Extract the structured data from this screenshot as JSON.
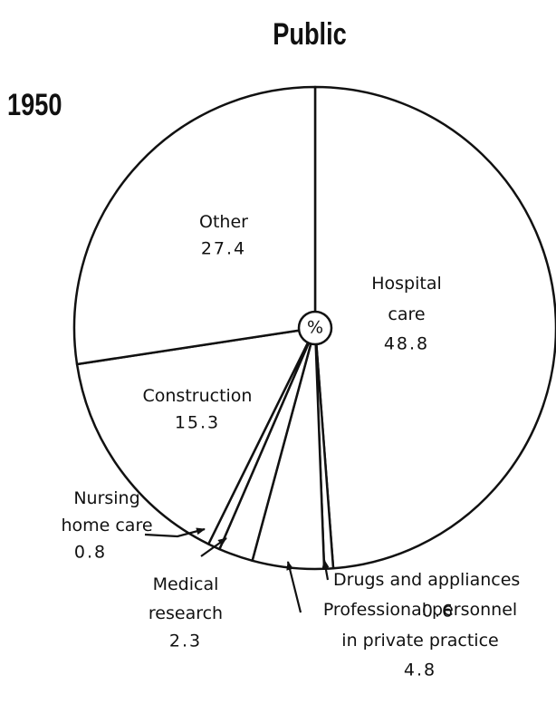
{
  "chart_data": {
    "type": "pie",
    "title": "Public",
    "subtitle": "1950",
    "center_label": "%",
    "categories": [
      "Hospital care",
      "Drugs and appliances",
      "Professional personnel in private practice",
      "Medical research",
      "Nursing home care",
      "Construction",
      "Other"
    ],
    "values": [
      48.8,
      0.6,
      4.8,
      2.3,
      0.8,
      15.3,
      27.4
    ],
    "color": "#ffffff"
  }
}
